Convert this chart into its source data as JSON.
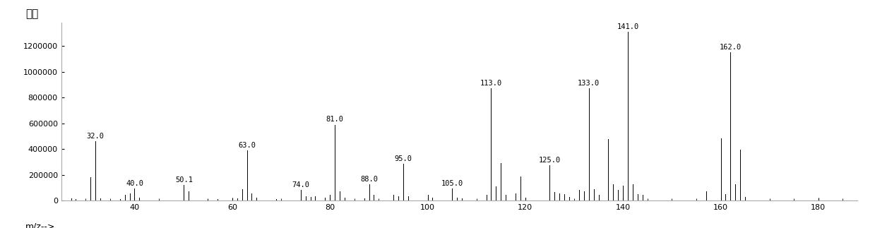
{
  "ylabel": "丰度",
  "xlabel": "m/z-->",
  "xlim": [
    25,
    188
  ],
  "ylim": [
    0,
    1380000
  ],
  "xticks": [
    40,
    60,
    80,
    100,
    120,
    140,
    160,
    180
  ],
  "yticks": [
    0,
    200000,
    400000,
    600000,
    800000,
    1000000,
    1200000
  ],
  "background_color": "#ffffff",
  "peaks": [
    {
      "mz": 27.0,
      "intensity": 18000,
      "label": null
    },
    {
      "mz": 28.0,
      "intensity": 15000,
      "label": null
    },
    {
      "mz": 31.0,
      "intensity": 180000,
      "label": null
    },
    {
      "mz": 32.0,
      "intensity": 460000,
      "label": "32.0"
    },
    {
      "mz": 33.0,
      "intensity": 20000,
      "label": null
    },
    {
      "mz": 37.0,
      "intensity": 15000,
      "label": null
    },
    {
      "mz": 38.0,
      "intensity": 45000,
      "label": null
    },
    {
      "mz": 39.0,
      "intensity": 55000,
      "label": null
    },
    {
      "mz": 40.0,
      "intensity": 95000,
      "label": "40.0"
    },
    {
      "mz": 41.0,
      "intensity": 25000,
      "label": null
    },
    {
      "mz": 50.0,
      "intensity": 95000,
      "label": null
    },
    {
      "mz": 50.1,
      "intensity": 120000,
      "label": "50.1"
    },
    {
      "mz": 51.0,
      "intensity": 70000,
      "label": null
    },
    {
      "mz": 55.0,
      "intensity": 12000,
      "label": null
    },
    {
      "mz": 57.0,
      "intensity": 12000,
      "label": null
    },
    {
      "mz": 61.0,
      "intensity": 20000,
      "label": null
    },
    {
      "mz": 62.0,
      "intensity": 90000,
      "label": null
    },
    {
      "mz": 63.0,
      "intensity": 390000,
      "label": "63.0"
    },
    {
      "mz": 64.0,
      "intensity": 55000,
      "label": null
    },
    {
      "mz": 65.0,
      "intensity": 25000,
      "label": null
    },
    {
      "mz": 69.0,
      "intensity": 15000,
      "label": null
    },
    {
      "mz": 74.0,
      "intensity": 82000,
      "label": "74.0"
    },
    {
      "mz": 75.0,
      "intensity": 35000,
      "label": null
    },
    {
      "mz": 76.0,
      "intensity": 30000,
      "label": null
    },
    {
      "mz": 77.0,
      "intensity": 35000,
      "label": null
    },
    {
      "mz": 79.0,
      "intensity": 25000,
      "label": null
    },
    {
      "mz": 80.0,
      "intensity": 45000,
      "label": null
    },
    {
      "mz": 81.0,
      "intensity": 590000,
      "label": "81.0"
    },
    {
      "mz": 82.0,
      "intensity": 75000,
      "label": null
    },
    {
      "mz": 83.0,
      "intensity": 25000,
      "label": null
    },
    {
      "mz": 87.0,
      "intensity": 18000,
      "label": null
    },
    {
      "mz": 88.0,
      "intensity": 125000,
      "label": "88.0"
    },
    {
      "mz": 89.0,
      "intensity": 45000,
      "label": null
    },
    {
      "mz": 93.0,
      "intensity": 45000,
      "label": null
    },
    {
      "mz": 94.0,
      "intensity": 35000,
      "label": null
    },
    {
      "mz": 95.0,
      "intensity": 285000,
      "label": "95.0"
    },
    {
      "mz": 96.0,
      "intensity": 35000,
      "label": null
    },
    {
      "mz": 100.0,
      "intensity": 45000,
      "label": null
    },
    {
      "mz": 101.0,
      "intensity": 25000,
      "label": null
    },
    {
      "mz": 105.0,
      "intensity": 95000,
      "label": "105.0"
    },
    {
      "mz": 106.0,
      "intensity": 25000,
      "label": null
    },
    {
      "mz": 107.0,
      "intensity": 20000,
      "label": null
    },
    {
      "mz": 112.0,
      "intensity": 45000,
      "label": null
    },
    {
      "mz": 113.0,
      "intensity": 870000,
      "label": "113.0"
    },
    {
      "mz": 114.0,
      "intensity": 110000,
      "label": null
    },
    {
      "mz": 115.0,
      "intensity": 290000,
      "label": null
    },
    {
      "mz": 116.0,
      "intensity": 45000,
      "label": null
    },
    {
      "mz": 118.0,
      "intensity": 55000,
      "label": null
    },
    {
      "mz": 119.0,
      "intensity": 190000,
      "label": null
    },
    {
      "mz": 120.0,
      "intensity": 25000,
      "label": null
    },
    {
      "mz": 125.0,
      "intensity": 275000,
      "label": "125.0"
    },
    {
      "mz": 126.0,
      "intensity": 65000,
      "label": null
    },
    {
      "mz": 127.0,
      "intensity": 55000,
      "label": null
    },
    {
      "mz": 128.0,
      "intensity": 50000,
      "label": null
    },
    {
      "mz": 129.0,
      "intensity": 30000,
      "label": null
    },
    {
      "mz": 131.0,
      "intensity": 85000,
      "label": null
    },
    {
      "mz": 132.0,
      "intensity": 70000,
      "label": null
    },
    {
      "mz": 133.0,
      "intensity": 870000,
      "label": "133.0"
    },
    {
      "mz": 134.0,
      "intensity": 90000,
      "label": null
    },
    {
      "mz": 135.0,
      "intensity": 45000,
      "label": null
    },
    {
      "mz": 137.0,
      "intensity": 480000,
      "label": null
    },
    {
      "mz": 138.0,
      "intensity": 125000,
      "label": null
    },
    {
      "mz": 139.0,
      "intensity": 85000,
      "label": null
    },
    {
      "mz": 140.0,
      "intensity": 115000,
      "label": null
    },
    {
      "mz": 141.0,
      "intensity": 1310000,
      "label": "141.0"
    },
    {
      "mz": 142.0,
      "intensity": 125000,
      "label": null
    },
    {
      "mz": 143.0,
      "intensity": 50000,
      "label": null
    },
    {
      "mz": 144.0,
      "intensity": 45000,
      "label": null
    },
    {
      "mz": 157.0,
      "intensity": 75000,
      "label": null
    },
    {
      "mz": 160.0,
      "intensity": 485000,
      "label": null
    },
    {
      "mz": 161.0,
      "intensity": 50000,
      "label": null
    },
    {
      "mz": 162.0,
      "intensity": 1150000,
      "label": "162.0"
    },
    {
      "mz": 163.0,
      "intensity": 125000,
      "label": null
    },
    {
      "mz": 164.0,
      "intensity": 395000,
      "label": null
    },
    {
      "mz": 165.0,
      "intensity": 30000,
      "label": null
    }
  ]
}
